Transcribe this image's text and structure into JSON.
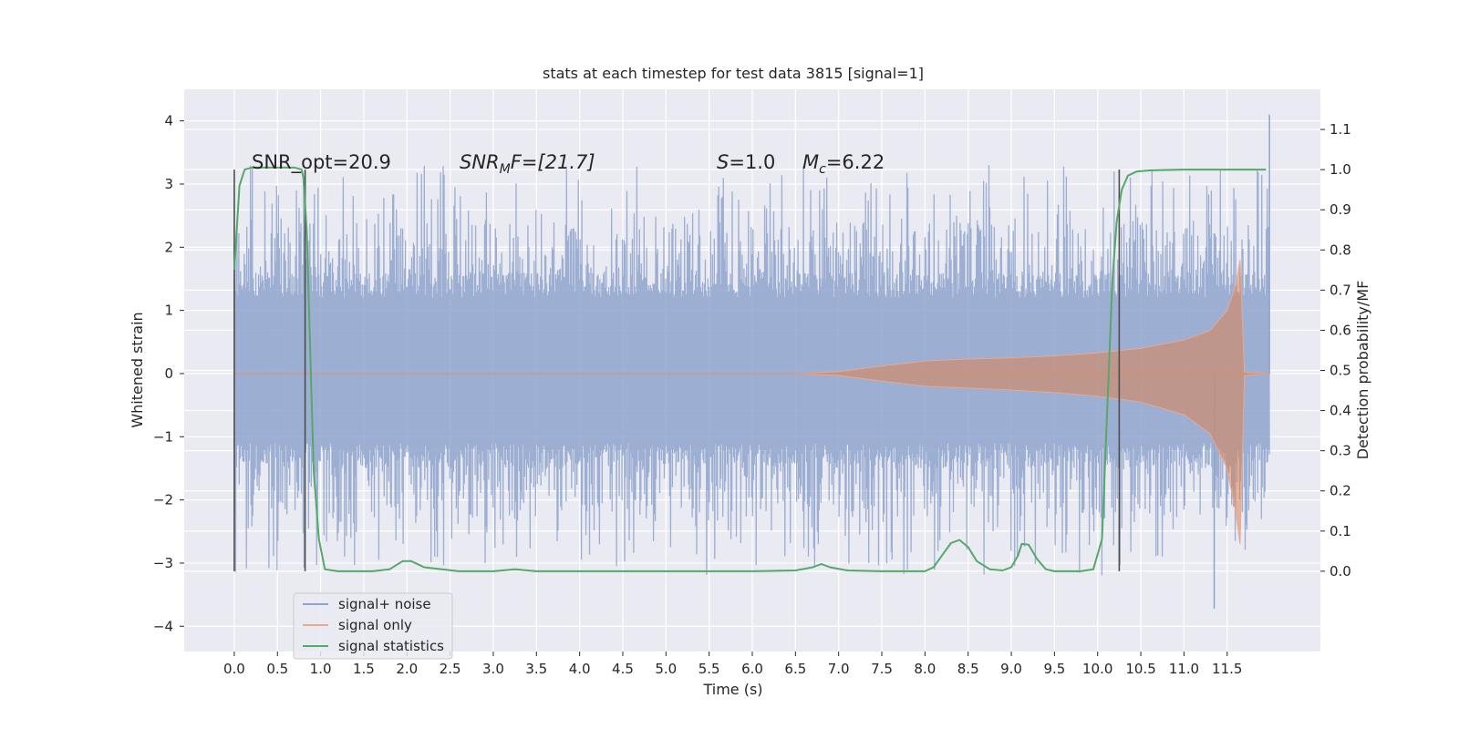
{
  "chart_data": {
    "type": "line",
    "title": "stats at each timestep for test data 3815 [signal=1]",
    "xlabel": "Time (s)",
    "ylabel_left": "Whitened strain",
    "ylabel_right": "Detection probability/MF",
    "xlim": [
      -0.58,
      12.58
    ],
    "ylim_left": [
      -4.4,
      4.5
    ],
    "ylim_right": [
      -0.2,
      1.2
    ],
    "xticks": [
      0.0,
      0.5,
      1.0,
      1.5,
      2.0,
      2.5,
      3.0,
      3.5,
      4.0,
      4.5,
      5.0,
      5.5,
      6.0,
      6.5,
      7.0,
      7.5,
      8.0,
      8.5,
      9.0,
      9.5,
      10.0,
      10.5,
      11.0,
      11.5
    ],
    "xtick_labels": [
      "0.0",
      "0.5",
      "1.0",
      "1.5",
      "2.0",
      "2.5",
      "3.0",
      "3.5",
      "4.0",
      "4.5",
      "5.0",
      "5.5",
      "6.0",
      "6.5",
      "7.0",
      "7.5",
      "8.0",
      "8.5",
      "9.0",
      "9.5",
      "10.0",
      "10.5",
      "11.0",
      "11.5"
    ],
    "yticks_left": [
      -4,
      -3,
      -2,
      -1,
      0,
      1,
      2,
      3,
      4
    ],
    "ytick_labels_left": [
      "−4",
      "−3",
      "−2",
      "−1",
      "0",
      "1",
      "2",
      "3",
      "4"
    ],
    "yticks_right": [
      0.0,
      0.1,
      0.2,
      0.3,
      0.4,
      0.5,
      0.6,
      0.7,
      0.8,
      0.9,
      1.0,
      1.1
    ],
    "ytick_labels_right": [
      "0.0",
      "0.1",
      "0.2",
      "0.3",
      "0.4",
      "0.5",
      "0.6",
      "0.7",
      "0.8",
      "0.9",
      "1.0",
      "1.1"
    ],
    "grid": true,
    "legend_position": "lower-left",
    "legend": [
      {
        "label": "signal+ noise",
        "color": "#8ea3cd"
      },
      {
        "label": "signal only",
        "color": "#e8a990"
      },
      {
        "label": "signal statistics",
        "color": "#55a868"
      }
    ],
    "annotations": {
      "snr_opt": "SNR_opt=20.9",
      "snr_mf_prefix": "SNR",
      "snr_mf_sub": "M",
      "snr_mf_suffix": "F=[21.7]",
      "s_prefix": "S",
      "s_suffix": "=1.0",
      "mc_prefix": "M",
      "mc_sub": "c",
      "mc_suffix": "=6.22"
    },
    "noise_series": {
      "name": "signal+ noise",
      "x_range": [
        0.0,
        11.99
      ],
      "typical_band": [
        -1.1,
        1.4
      ],
      "extremes": {
        "max": 4.1,
        "min": -3.72
      }
    },
    "signal_envelope": {
      "name": "signal only",
      "x": [
        0.0,
        6.5,
        7.0,
        7.5,
        8.0,
        8.5,
        9.0,
        9.5,
        10.0,
        10.5,
        11.0,
        11.3,
        11.5,
        11.6,
        11.65,
        11.7,
        12.0
      ],
      "upper": [
        0.0,
        0.0,
        0.03,
        0.12,
        0.2,
        0.23,
        0.25,
        0.28,
        0.33,
        0.4,
        0.53,
        0.68,
        1.0,
        1.4,
        1.8,
        0.02,
        0.0
      ],
      "lower": [
        0.0,
        0.0,
        -0.03,
        -0.12,
        -0.2,
        -0.23,
        -0.26,
        -0.3,
        -0.36,
        -0.45,
        -0.65,
        -0.95,
        -1.5,
        -2.2,
        -2.7,
        -0.03,
        0.0
      ]
    },
    "signal_statistics": {
      "name": "signal statistics",
      "x": [
        0.0,
        0.06,
        0.12,
        0.2,
        0.3,
        0.5,
        0.7,
        0.78,
        0.8,
        0.84,
        0.88,
        0.92,
        0.98,
        1.05,
        1.2,
        1.6,
        1.8,
        1.95,
        2.05,
        2.2,
        2.6,
        3.0,
        3.25,
        3.5,
        4.0,
        5.0,
        6.0,
        6.5,
        6.7,
        6.8,
        6.9,
        7.1,
        7.5,
        8.0,
        8.1,
        8.2,
        8.3,
        8.4,
        8.5,
        8.6,
        8.75,
        8.9,
        9.0,
        9.08,
        9.12,
        9.2,
        9.3,
        9.4,
        9.5,
        9.8,
        9.95,
        10.05,
        10.12,
        10.17,
        10.22,
        10.28,
        10.35,
        10.45,
        10.6,
        11.0,
        11.5,
        11.95
      ],
      "y": [
        0.75,
        0.96,
        1.0,
        1.005,
        1.005,
        1.005,
        1.005,
        1.0,
        0.98,
        0.85,
        0.55,
        0.25,
        0.08,
        0.005,
        0.0,
        0.0,
        0.005,
        0.025,
        0.025,
        0.01,
        0.0,
        0.0,
        0.005,
        0.0,
        0.0,
        0.0,
        0.0,
        0.002,
        0.01,
        0.018,
        0.01,
        0.002,
        0.0,
        0.0,
        0.01,
        0.04,
        0.07,
        0.078,
        0.06,
        0.025,
        0.005,
        0.002,
        0.01,
        0.04,
        0.068,
        0.066,
        0.03,
        0.005,
        0.0,
        0.0,
        0.005,
        0.08,
        0.45,
        0.72,
        0.87,
        0.95,
        0.985,
        0.995,
        0.998,
        1.0,
        1.0,
        1.0
      ]
    },
    "vertical_markers": {
      "x": [
        0.0,
        0.82,
        10.25
      ],
      "y_range": [
        0.0,
        1.0
      ],
      "color": "#4d4d4d"
    }
  }
}
